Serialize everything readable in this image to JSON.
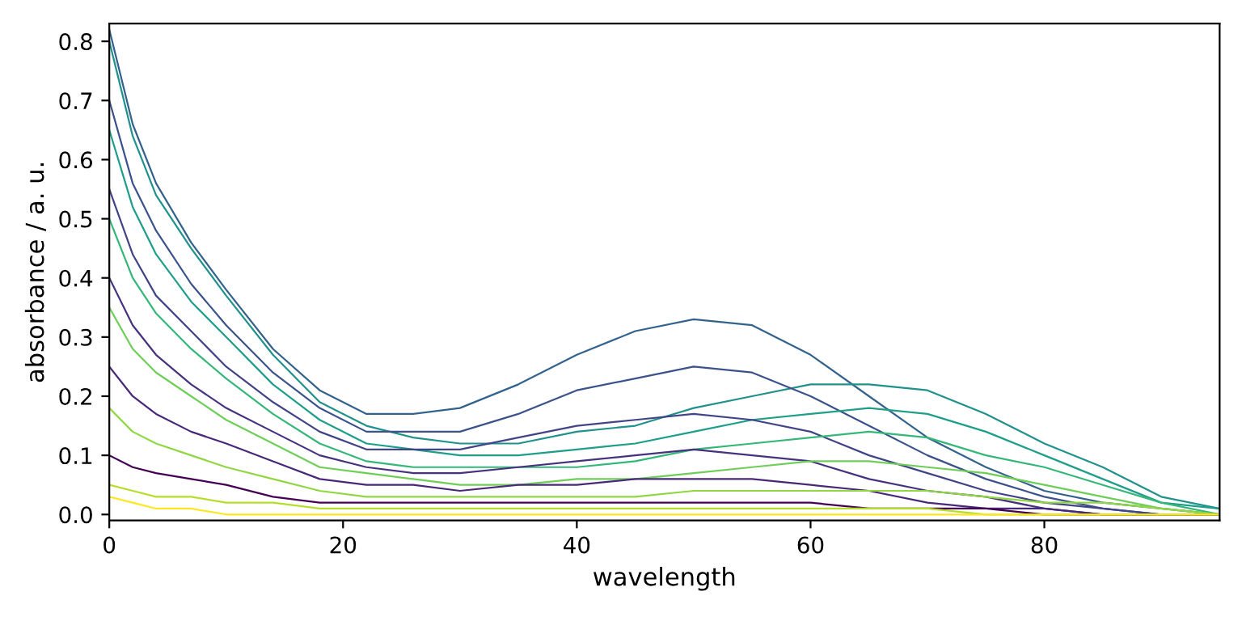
{
  "chart_data": {
    "type": "line",
    "xlabel": "wavelength",
    "ylabel": "absorbance / a. u.",
    "x": [
      0,
      2,
      4,
      7,
      10,
      14,
      18,
      22,
      26,
      30,
      35,
      40,
      45,
      50,
      55,
      60,
      65,
      70,
      75,
      80,
      85,
      90,
      95
    ],
    "series": [
      {
        "color": "#33638d",
        "values": [
          0.82,
          0.66,
          0.56,
          0.46,
          0.38,
          0.28,
          0.21,
          0.17,
          0.17,
          0.18,
          0.22,
          0.27,
          0.31,
          0.33,
          0.32,
          0.27,
          0.2,
          0.13,
          0.08,
          0.04,
          0.02,
          0.01,
          0
        ]
      },
      {
        "color": "#21918c",
        "values": [
          0.8,
          0.64,
          0.54,
          0.45,
          0.37,
          0.27,
          0.19,
          0.15,
          0.13,
          0.12,
          0.12,
          0.14,
          0.15,
          0.18,
          0.2,
          0.22,
          0.22,
          0.21,
          0.17,
          0.12,
          0.08,
          0.03,
          0.01
        ]
      },
      {
        "color": "#3b528b",
        "values": [
          0.7,
          0.56,
          0.48,
          0.39,
          0.32,
          0.24,
          0.18,
          0.14,
          0.14,
          0.14,
          0.17,
          0.21,
          0.23,
          0.25,
          0.24,
          0.2,
          0.15,
          0.1,
          0.06,
          0.03,
          0.01,
          0,
          0
        ]
      },
      {
        "color": "#1f9e89",
        "values": [
          0.65,
          0.52,
          0.44,
          0.36,
          0.3,
          0.22,
          0.16,
          0.12,
          0.11,
          0.1,
          0.1,
          0.11,
          0.12,
          0.14,
          0.16,
          0.17,
          0.18,
          0.17,
          0.14,
          0.1,
          0.06,
          0.02,
          0.01
        ]
      },
      {
        "color": "#414487",
        "values": [
          0.55,
          0.44,
          0.37,
          0.31,
          0.25,
          0.19,
          0.14,
          0.11,
          0.11,
          0.11,
          0.13,
          0.15,
          0.16,
          0.17,
          0.16,
          0.14,
          0.1,
          0.07,
          0.04,
          0.02,
          0.01,
          0,
          0
        ]
      },
      {
        "color": "#35b779",
        "values": [
          0.5,
          0.4,
          0.34,
          0.28,
          0.23,
          0.17,
          0.12,
          0.09,
          0.08,
          0.08,
          0.08,
          0.08,
          0.09,
          0.11,
          0.12,
          0.13,
          0.14,
          0.13,
          0.1,
          0.08,
          0.05,
          0.02,
          0
        ]
      },
      {
        "color": "#46327e",
        "values": [
          0.4,
          0.32,
          0.27,
          0.22,
          0.18,
          0.14,
          0.1,
          0.08,
          0.07,
          0.07,
          0.08,
          0.09,
          0.1,
          0.11,
          0.1,
          0.09,
          0.06,
          0.04,
          0.03,
          0.01,
          0,
          0,
          0
        ]
      },
      {
        "color": "#6ece58",
        "values": [
          0.35,
          0.28,
          0.24,
          0.2,
          0.16,
          0.12,
          0.08,
          0.07,
          0.06,
          0.05,
          0.05,
          0.06,
          0.06,
          0.07,
          0.08,
          0.09,
          0.09,
          0.08,
          0.07,
          0.05,
          0.03,
          0.01,
          0
        ]
      },
      {
        "color": "#482878",
        "values": [
          0.25,
          0.2,
          0.17,
          0.14,
          0.12,
          0.09,
          0.06,
          0.05,
          0.05,
          0.04,
          0.05,
          0.05,
          0.06,
          0.06,
          0.06,
          0.05,
          0.04,
          0.02,
          0.01,
          0.01,
          0,
          0,
          0
        ]
      },
      {
        "color": "#90d743",
        "values": [
          0.18,
          0.14,
          0.12,
          0.1,
          0.08,
          0.06,
          0.04,
          0.03,
          0.03,
          0.03,
          0.03,
          0.03,
          0.03,
          0.04,
          0.04,
          0.04,
          0.04,
          0.04,
          0.03,
          0.02,
          0.02,
          0.01,
          0
        ]
      },
      {
        "color": "#440154",
        "values": [
          0.1,
          0.08,
          0.07,
          0.06,
          0.05,
          0.03,
          0.02,
          0.02,
          0.02,
          0.02,
          0.02,
          0.02,
          0.02,
          0.02,
          0.02,
          0.02,
          0.01,
          0.01,
          0.01,
          0,
          0,
          0,
          0
        ]
      },
      {
        "color": "#b5de2b",
        "values": [
          0.05,
          0.04,
          0.03,
          0.03,
          0.02,
          0.02,
          0.01,
          0.01,
          0.01,
          0.01,
          0.01,
          0.01,
          0.01,
          0.01,
          0.01,
          0.01,
          0.01,
          0.01,
          0,
          0,
          0,
          0,
          0
        ]
      },
      {
        "color": "#fde725",
        "values": [
          0.03,
          0.02,
          0.01,
          0.01,
          0,
          0,
          0,
          0,
          0,
          0,
          0,
          0,
          0,
          0,
          0,
          0,
          0,
          0,
          0,
          0,
          0,
          0,
          0
        ]
      }
    ],
    "xlim": [
      0,
      95
    ],
    "xticks": [
      0,
      20,
      40,
      60,
      80
    ],
    "ylim": [
      -0.01,
      0.83
    ],
    "yticks": [
      {
        "value": 0,
        "label": "0.0"
      },
      0.1,
      0.2,
      0.3,
      0.4,
      0.5,
      0.6,
      0.7,
      0.8
    ],
    "grid": false,
    "legend": false,
    "marker": "none",
    "line_style": "solid"
  }
}
